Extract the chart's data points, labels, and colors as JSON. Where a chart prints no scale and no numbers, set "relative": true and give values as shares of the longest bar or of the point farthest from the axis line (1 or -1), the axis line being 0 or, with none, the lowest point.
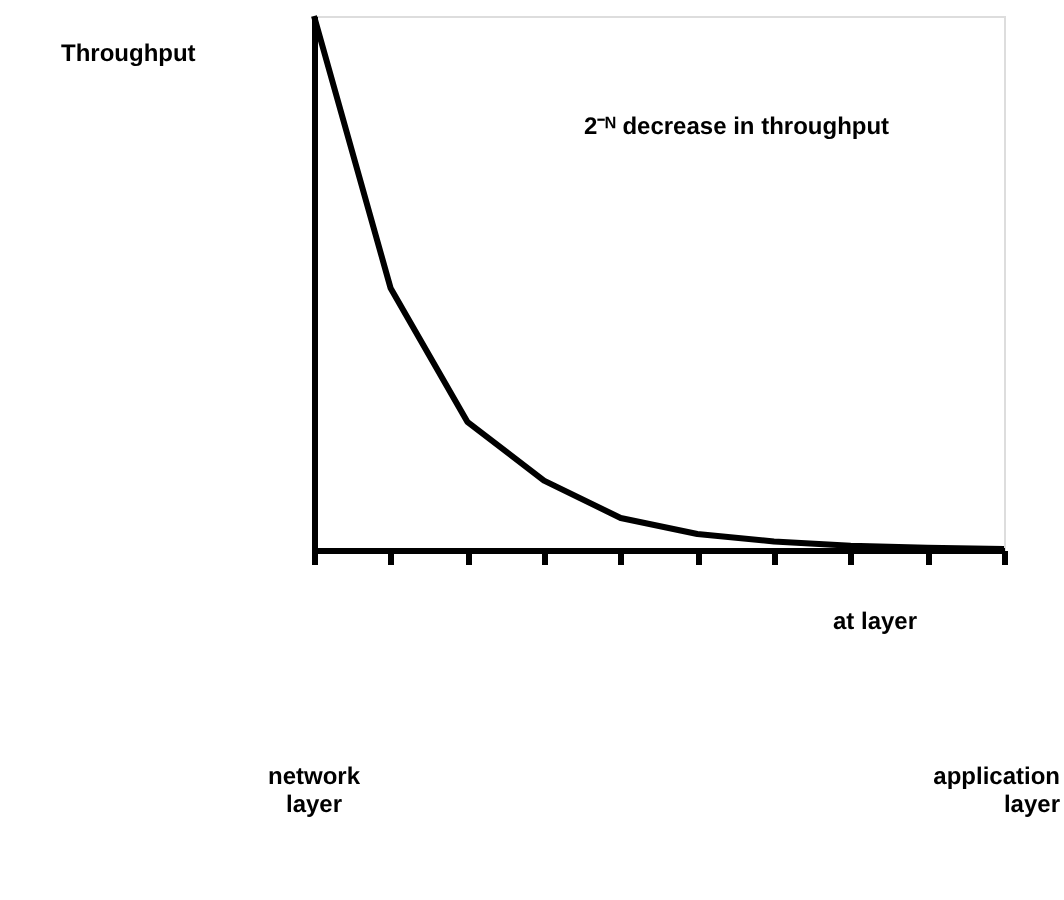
{
  "chart_data": {
    "type": "line",
    "relative": true,
    "ylabel": "Throughput",
    "xlabel": "at layer",
    "categories": [
      null,
      null,
      null,
      null,
      null,
      null,
      null,
      null,
      null,
      null
    ],
    "values": [
      1,
      0.49,
      0.24,
      0.13,
      0.06,
      0.03,
      0.016,
      0.008,
      0.004,
      0.002
    ],
    "color": "#000000",
    "marker": "none",
    "line_style": "solid",
    "grid": false,
    "annotations": [
      "2⁻ᴺ decrease in throughput",
      "network layer",
      "application layer"
    ]
  }
}
